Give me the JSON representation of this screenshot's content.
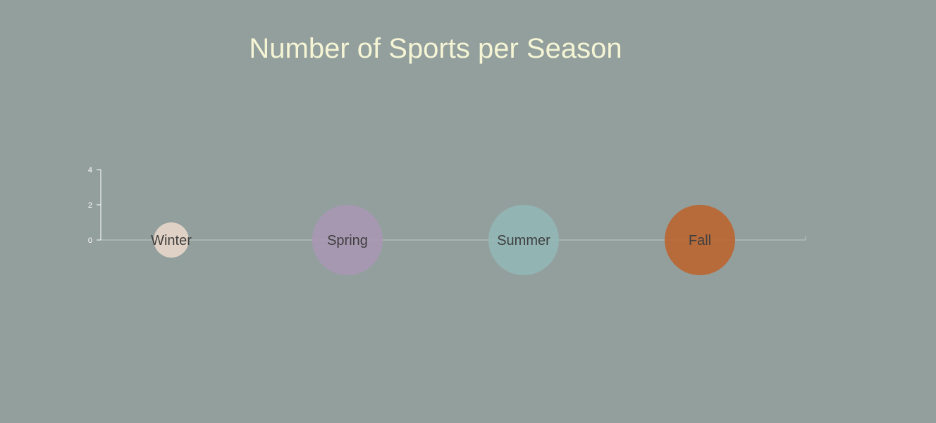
{
  "chart_data": {
    "type": "bubble",
    "title": "Number of Sports per Season",
    "categories": [
      "Winter",
      "Spring",
      "Summer",
      "Fall"
    ],
    "values": [
      2,
      4,
      4,
      4
    ],
    "colors": [
      "#e6d5c9",
      "#a997b3",
      "#93b6b6",
      "#bb6633"
    ],
    "y_ticks": [
      0,
      2,
      4
    ],
    "ylim": [
      0,
      4
    ],
    "axis_color": "#ffffff",
    "baseline_color": "#bcc7c5",
    "grid": false,
    "legend": "none"
  }
}
